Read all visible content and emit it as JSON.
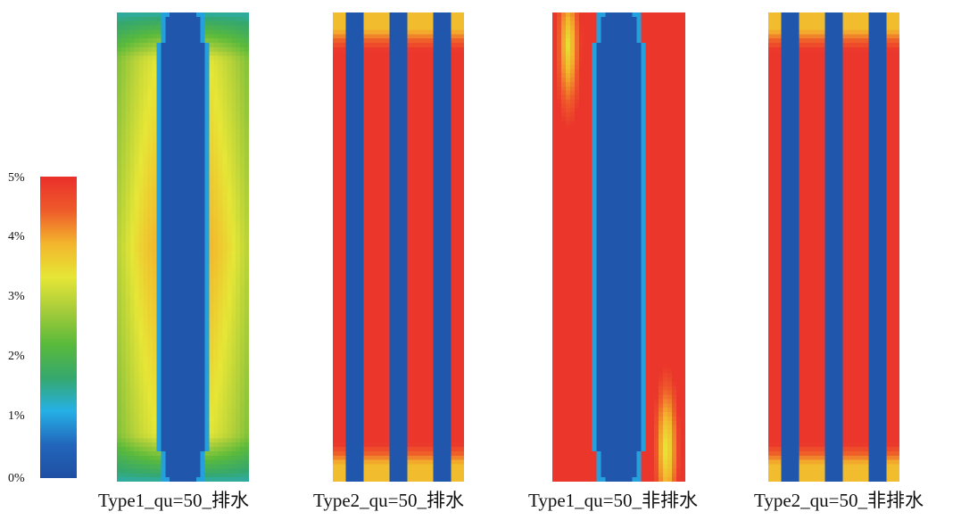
{
  "colorbar": {
    "ticks": [
      "0%",
      "1%",
      "2%",
      "3%",
      "4%",
      "5%"
    ],
    "range": [
      0,
      5
    ],
    "colors": [
      "#1f4fa3",
      "#2266bb",
      "#25b0e6",
      "#36a86c",
      "#5aba3b",
      "#a6cc3a",
      "#e6e636",
      "#f3b52c",
      "#ee5a2a",
      "#ea2f2b"
    ]
  },
  "chart_data": [
    {
      "type": "heatmap",
      "title": "Type1_qu=50_排水",
      "pattern": "single-column",
      "colorbar_range": [
        0,
        5
      ],
      "regions": {
        "column": 0.2,
        "column_edge": 1.0,
        "flank_near_column": 3.9,
        "flank_mid": 3.5,
        "flank_outer": 2.9,
        "ends": 1.4
      }
    },
    {
      "type": "heatmap",
      "title": "Type2_qu=50_排水",
      "pattern": "multi-column",
      "colorbar_range": [
        0,
        5
      ],
      "regions": {
        "column": 0.2,
        "between_columns": 4.9,
        "top_bottom_edge": 3.8
      }
    },
    {
      "type": "heatmap",
      "title": "Type1_qu=50_非排水",
      "pattern": "single-column",
      "colorbar_range": [
        0,
        5
      ],
      "regions": {
        "column": 0.2,
        "column_edge": 1.0,
        "flank": 4.9,
        "upper_left_corner": 3.4,
        "lower_right_corner": 3.2
      }
    },
    {
      "type": "heatmap",
      "title": "Type2_qu=50_非排水",
      "pattern": "multi-column",
      "colorbar_range": [
        0,
        5
      ],
      "regions": {
        "column": 0.2,
        "between_columns": 4.9,
        "top_bottom_edge": 3.8
      }
    }
  ]
}
